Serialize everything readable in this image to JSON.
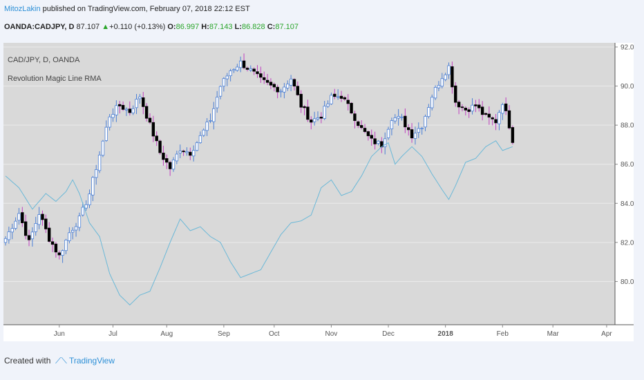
{
  "header": {
    "author": "MitozLakin",
    "published": " published on TradingView.com, February 07, 2018 22:12 EST",
    "symbol": "OANDA:CADJPY, D",
    "last": "87.107",
    "change": "+0.110 (+0.13%)",
    "open_label": "O:",
    "open": "86.997",
    "high_label": "H:",
    "high": "87.143",
    "low_label": "L:",
    "low": "86.828",
    "close_label": "C:",
    "close": "87.107"
  },
  "legend": {
    "title": "CAD/JPY, D, OANDA",
    "indicator": "Revolution Magic Line RMA"
  },
  "footer": {
    "created": "Created with",
    "brand": "TradingView"
  },
  "colors": {
    "background": "#d9d9d9",
    "axis_bg": "#ffffff",
    "bull_candle": "#ffffff",
    "bull_wick": "#4a7fd6",
    "bear_candle": "#000000",
    "bear_wick": "#c040c0",
    "line": "#6ab8d8",
    "accent": "#2c8fd6"
  },
  "chart_data": {
    "type": "candlestick",
    "title": "CAD/JPY, D, OANDA",
    "x_ticks": [
      "Jun",
      "Jul",
      "Aug",
      "Sep",
      "Oct",
      "Nov",
      "Dec",
      "2018",
      "Feb",
      "Mar",
      "Apr"
    ],
    "y_ticks": [
      80.0,
      82.0,
      84.0,
      86.0,
      88.0,
      90.0,
      92.0
    ],
    "y_tick_labels": [
      "80.000",
      "82.000",
      "84.000",
      "86.000",
      "88.000",
      "90.000",
      "92.000"
    ],
    "ylim": [
      78.0,
      92.0
    ],
    "last_price": 87.107,
    "price_anchors": [
      [
        0,
        82.2
      ],
      [
        4,
        83.5
      ],
      [
        7,
        82.0
      ],
      [
        10,
        83.5
      ],
      [
        13,
        82.2
      ],
      [
        16,
        81.3
      ],
      [
        19,
        82.5
      ],
      [
        22,
        83.2
      ],
      [
        25,
        84.5
      ],
      [
        28,
        86.5
      ],
      [
        31,
        88.5
      ],
      [
        34,
        89.0
      ],
      [
        37,
        88.7
      ],
      [
        40,
        89.5
      ],
      [
        43,
        88.0
      ],
      [
        46,
        86.6
      ],
      [
        49,
        85.8
      ],
      [
        52,
        86.8
      ],
      [
        55,
        86.6
      ],
      [
        58,
        87.4
      ],
      [
        61,
        88.3
      ],
      [
        64,
        90.0
      ],
      [
        67,
        90.8
      ],
      [
        70,
        91.2
      ],
      [
        73,
        90.8
      ],
      [
        76,
        90.3
      ],
      [
        79,
        90.0
      ],
      [
        82,
        89.8
      ],
      [
        85,
        90.4
      ],
      [
        88,
        89.0
      ],
      [
        91,
        88.2
      ],
      [
        94,
        88.5
      ],
      [
        97,
        89.4
      ],
      [
        100,
        89.5
      ],
      [
        103,
        88.7
      ],
      [
        106,
        87.8
      ],
      [
        109,
        87.2
      ],
      [
        112,
        87.0
      ],
      [
        115,
        88.4
      ],
      [
        118,
        88.3
      ],
      [
        121,
        87.5
      ],
      [
        124,
        88.0
      ],
      [
        127,
        89.5
      ],
      [
        130,
        90.5
      ],
      [
        132,
        91.0
      ],
      [
        134,
        89.2
      ],
      [
        137,
        88.8
      ],
      [
        140,
        89.0
      ],
      [
        143,
        88.4
      ],
      [
        146,
        88.2
      ],
      [
        148,
        89.2
      ],
      [
        150,
        88.0
      ],
      [
        151,
        87.1
      ]
    ],
    "line_series": {
      "name": "Revolution Magic Line RMA",
      "anchors": [
        [
          0,
          85.4
        ],
        [
          4,
          84.8
        ],
        [
          8,
          83.7
        ],
        [
          12,
          84.5
        ],
        [
          15,
          84.1
        ],
        [
          18,
          84.6
        ],
        [
          20,
          85.2
        ],
        [
          22,
          84.5
        ],
        [
          25,
          83.0
        ],
        [
          28,
          82.3
        ],
        [
          31,
          80.4
        ],
        [
          34,
          79.3
        ],
        [
          37,
          78.8
        ],
        [
          40,
          79.3
        ],
        [
          43,
          79.5
        ],
        [
          46,
          80.7
        ],
        [
          49,
          82.0
        ],
        [
          52,
          83.2
        ],
        [
          55,
          82.6
        ],
        [
          58,
          82.8
        ],
        [
          61,
          82.3
        ],
        [
          64,
          82.0
        ],
        [
          67,
          81.0
        ],
        [
          70,
          80.2
        ],
        [
          73,
          80.4
        ],
        [
          76,
          80.6
        ],
        [
          79,
          81.5
        ],
        [
          82,
          82.4
        ],
        [
          85,
          83.0
        ],
        [
          88,
          83.1
        ],
        [
          91,
          83.4
        ],
        [
          94,
          84.8
        ],
        [
          97,
          85.2
        ],
        [
          100,
          84.4
        ],
        [
          103,
          84.6
        ],
        [
          106,
          85.4
        ],
        [
          109,
          86.4
        ],
        [
          112,
          86.9
        ],
        [
          114,
          87.1
        ],
        [
          116,
          86.0
        ],
        [
          118,
          86.4
        ],
        [
          121,
          86.9
        ],
        [
          124,
          86.4
        ],
        [
          127,
          85.5
        ],
        [
          130,
          84.7
        ],
        [
          132,
          84.2
        ],
        [
          134,
          84.9
        ],
        [
          137,
          86.1
        ],
        [
          140,
          86.3
        ],
        [
          143,
          86.9
        ],
        [
          146,
          87.2
        ],
        [
          148,
          86.7
        ],
        [
          151,
          86.9
        ]
      ]
    }
  }
}
